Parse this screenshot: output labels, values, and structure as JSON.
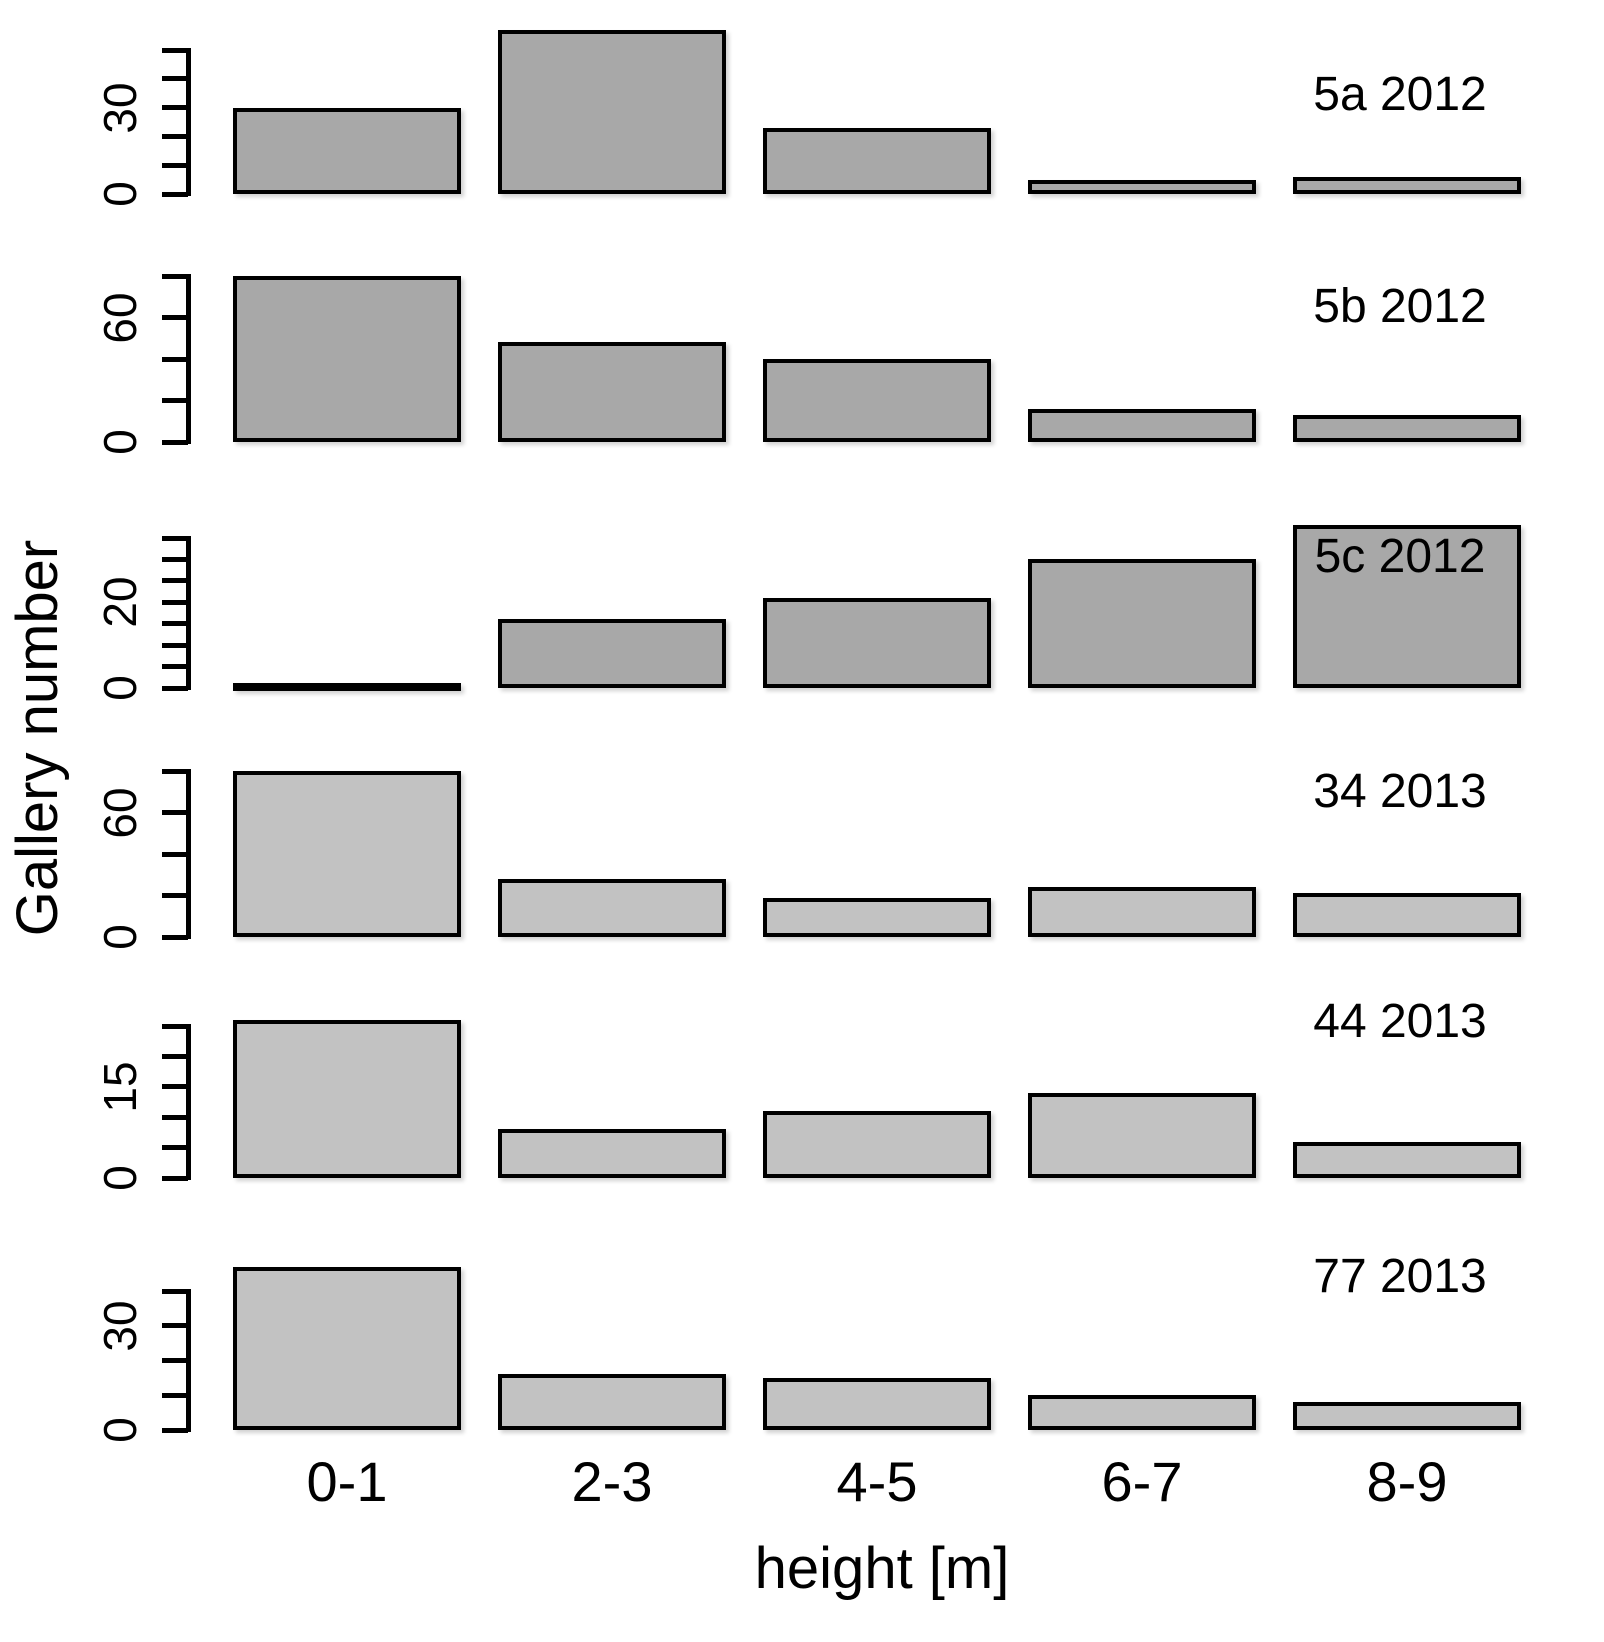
{
  "figure": {
    "xlabel": "height [m]",
    "ylabel": "Gallery number"
  },
  "chart_data": {
    "type": "bar",
    "layout": "6 vertically stacked panels, shared x axis",
    "categories": [
      "0-1",
      "2-3",
      "4-5",
      "6-7",
      "8-9"
    ],
    "xlabel": "height [m]",
    "ylabel": "Gallery number",
    "grid": false,
    "legend_position": "none",
    "bar_border_color": "#000000",
    "colors": {
      "group_2012": "#a8a8a8",
      "group_2013": "#c2c2c2"
    },
    "panels": [
      {
        "label": "5a 2012",
        "group": "2012",
        "bar_color": "#a8a8a8",
        "values": [
          30,
          57,
          23,
          5,
          6
        ],
        "yticks": [
          0,
          10,
          20,
          30,
          40,
          50
        ],
        "ytick_labels_shown": [
          "0",
          "30"
        ],
        "ylim": [
          0,
          50
        ]
      },
      {
        "label": "5b 2012",
        "group": "2012",
        "bar_color": "#a8a8a8",
        "values": [
          80,
          48,
          40,
          16,
          13
        ],
        "yticks": [
          0,
          20,
          40,
          60,
          80
        ],
        "ytick_labels_shown": [
          "0",
          "60"
        ],
        "ylim": [
          0,
          80
        ]
      },
      {
        "label": "5c 2012",
        "group": "2012",
        "bar_color": "#a8a8a8",
        "values": [
          1,
          16,
          21,
          30,
          38
        ],
        "yticks": [
          0,
          5,
          10,
          15,
          20,
          25,
          30,
          35
        ],
        "ytick_labels_shown": [
          "0",
          "20"
        ],
        "ylim": [
          0,
          35
        ]
      },
      {
        "label": "34 2013",
        "group": "2013",
        "bar_color": "#c2c2c2",
        "values": [
          80,
          28,
          19,
          24,
          21
        ],
        "yticks": [
          0,
          20,
          40,
          60,
          80
        ],
        "ytick_labels_shown": [
          "0",
          "60"
        ],
        "ylim": [
          0,
          80
        ]
      },
      {
        "label": "44 2013",
        "group": "2013",
        "bar_color": "#c2c2c2",
        "values": [
          26,
          8,
          11,
          14,
          6
        ],
        "yticks": [
          0,
          5,
          10,
          15,
          20,
          25
        ],
        "ytick_labels_shown": [
          "0",
          "15"
        ],
        "ylim": [
          0,
          25
        ]
      },
      {
        "label": "77 2013",
        "group": "2013",
        "bar_color": "#c2c2c2",
        "values": [
          47,
          16,
          15,
          10,
          8
        ],
        "yticks": [
          0,
          10,
          20,
          30,
          40
        ],
        "ytick_labels_shown": [
          "0",
          "30"
        ],
        "ylim": [
          0,
          40
        ]
      }
    ]
  }
}
